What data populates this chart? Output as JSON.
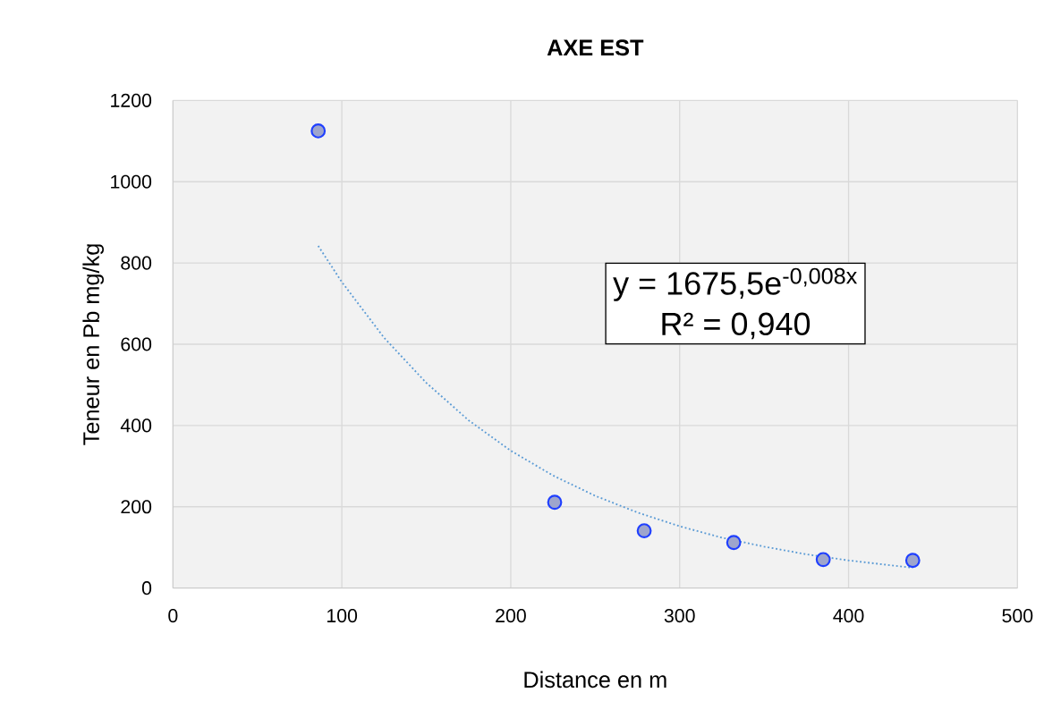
{
  "chart_data": {
    "type": "scatter",
    "title": "AXE EST",
    "xlabel": "Distance en m",
    "ylabel": "Teneur en Pb mg/kg",
    "annotations": [
      "y = 1675,5e$^{-0,008x}$",
      "R² = 0,940"
    ],
    "series": [
      {
        "type": "scatter",
        "color": "#1f3fff",
        "marker": "circle",
        "x": [
          86,
          226,
          279,
          332,
          385,
          438
        ],
        "values": [
          1125,
          211,
          141,
          112,
          70,
          68
        ]
      },
      {
        "type": "line",
        "color": "#5b9bd5",
        "line_style": "dotted",
        "marker": "none",
        "x": [
          86,
          100,
          125,
          150,
          175,
          200,
          225,
          250,
          275,
          300,
          325,
          350,
          375,
          400,
          425,
          438
        ],
        "values": [
          842,
          753,
          616,
          505,
          413,
          338,
          277,
          227,
          186,
          152,
          124,
          102,
          83,
          68,
          56,
          50
        ]
      }
    ],
    "xlim": [
      0,
      500
    ],
    "ylim": [
      0,
      1200
    ],
    "xticks": [
      0,
      100,
      200,
      300,
      400,
      500
    ],
    "yticks": [
      0,
      200,
      400,
      600,
      800,
      1000,
      1200
    ],
    "grid": true
  }
}
